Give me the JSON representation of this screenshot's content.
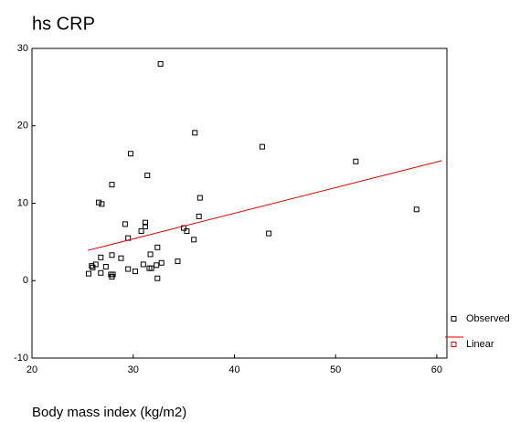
{
  "chart_data": {
    "type": "scatter",
    "title": "hs CRP",
    "x_label": "Body mass index (kg/m2)",
    "xlim": [
      20,
      61
    ],
    "xticks": [
      20,
      30,
      40,
      50,
      60
    ],
    "ylim": [
      -10,
      30
    ],
    "yticks": [
      -10,
      0,
      10,
      20,
      30
    ],
    "legend": "right",
    "series": [
      {
        "name": "Observed",
        "type": "scatter",
        "color": "#000000",
        "x": [
          32.7,
          36.1,
          29.75,
          42.75,
          52.0,
          27.9,
          31.4,
          36.6,
          26.6,
          26.9,
          58.0,
          36.5,
          31.2,
          31.2,
          29.2,
          30.8,
          35.0,
          35.3,
          43.4,
          29.5,
          36.0,
          32.4,
          31.7,
          27.9,
          26.8,
          28.8,
          34.4,
          32.8,
          31.0,
          32.3,
          25.9,
          26.3,
          27.3,
          26.0,
          31.6,
          31.8,
          29.5,
          30.2,
          26.8,
          25.6,
          27.8,
          28.0,
          27.9,
          32.4
        ],
        "values": [
          28.0,
          19.1,
          16.4,
          17.3,
          15.4,
          12.4,
          13.6,
          10.7,
          10.1,
          9.9,
          9.2,
          8.3,
          7.5,
          7.0,
          7.3,
          6.4,
          6.8,
          6.4,
          6.1,
          5.5,
          5.3,
          4.3,
          3.4,
          3.3,
          3.0,
          2.9,
          2.5,
          2.3,
          2.1,
          2.0,
          1.9,
          2.1,
          1.8,
          1.7,
          1.6,
          1.6,
          1.5,
          1.2,
          1.0,
          0.9,
          0.8,
          0.8,
          0.5,
          0.3
        ]
      },
      {
        "name": "Linear",
        "type": "line",
        "color": "#e00000",
        "x": [
          25.5,
          60.5
        ],
        "values": [
          3.9,
          15.5
        ]
      }
    ]
  }
}
